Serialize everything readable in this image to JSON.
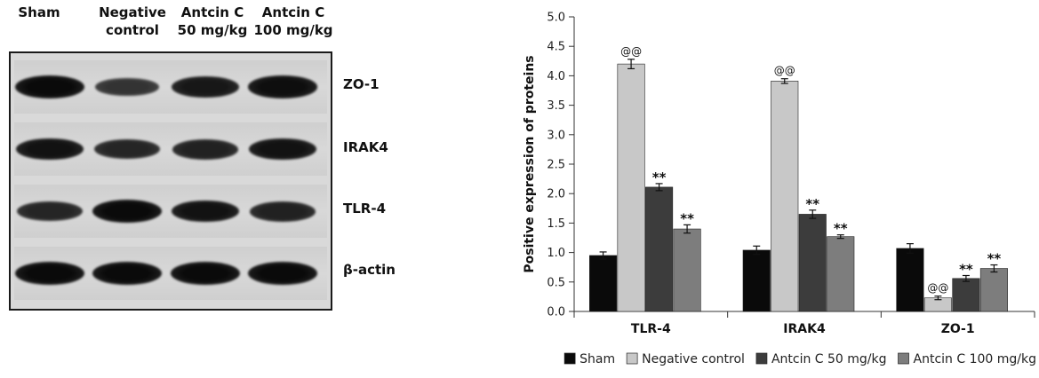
{
  "blot": {
    "lanes": [
      {
        "header": "Sham"
      },
      {
        "header": "Negative\ncontrol"
      },
      {
        "header": "Antcin C\n50 mg/kg"
      },
      {
        "header": "Antcin C\n100 mg/kg"
      }
    ],
    "rows": [
      {
        "label": "ZO-1",
        "intensities": [
          1.0,
          0.55,
          0.85,
          0.95
        ]
      },
      {
        "label": "IRAK4",
        "intensities": [
          0.9,
          0.7,
          0.75,
          0.9
        ]
      },
      {
        "label": "TLR-4",
        "intensities": [
          0.7,
          1.0,
          0.9,
          0.75
        ]
      },
      {
        "label": "β-actin",
        "intensities": [
          1.0,
          1.0,
          1.0,
          1.0
        ]
      }
    ]
  },
  "chart_data": {
    "type": "bar",
    "categories": [
      "TLR-4",
      "IRAK4",
      "ZO-1"
    ],
    "ylabel": "Positive expression of proteins",
    "xlabel": "",
    "ylim": [
      0,
      5.0
    ],
    "ytick_step": 0.5,
    "yticks": [
      "0.0",
      "0.5",
      "1.0",
      "1.5",
      "2.0",
      "2.5",
      "3.0",
      "3.5",
      "4.0",
      "4.5",
      "5.0"
    ],
    "legend_position": "bottom",
    "series": [
      {
        "name": "Sham",
        "color": "#0a0a0a",
        "values": [
          0.95,
          1.04,
          1.07
        ],
        "errors": [
          0.06,
          0.07,
          0.08
        ],
        "labels": [
          "",
          "",
          ""
        ]
      },
      {
        "name": "Negative control",
        "color": "#c8c8c8",
        "values": [
          4.2,
          3.91,
          0.23
        ],
        "errors": [
          0.08,
          0.04,
          0.03
        ],
        "labels": [
          "@@",
          "@@",
          "@@"
        ]
      },
      {
        "name": "Antcin C 50 mg/kg",
        "color": "#3c3c3c",
        "values": [
          2.11,
          1.65,
          0.56
        ],
        "errors": [
          0.06,
          0.07,
          0.05
        ],
        "labels": [
          "**",
          "**",
          "**"
        ]
      },
      {
        "name": "Antcin C 100 mg/kg",
        "color": "#7d7d7d",
        "values": [
          1.4,
          1.27,
          0.73
        ],
        "errors": [
          0.07,
          0.03,
          0.06
        ],
        "labels": [
          "**",
          "**",
          "**"
        ]
      }
    ]
  }
}
